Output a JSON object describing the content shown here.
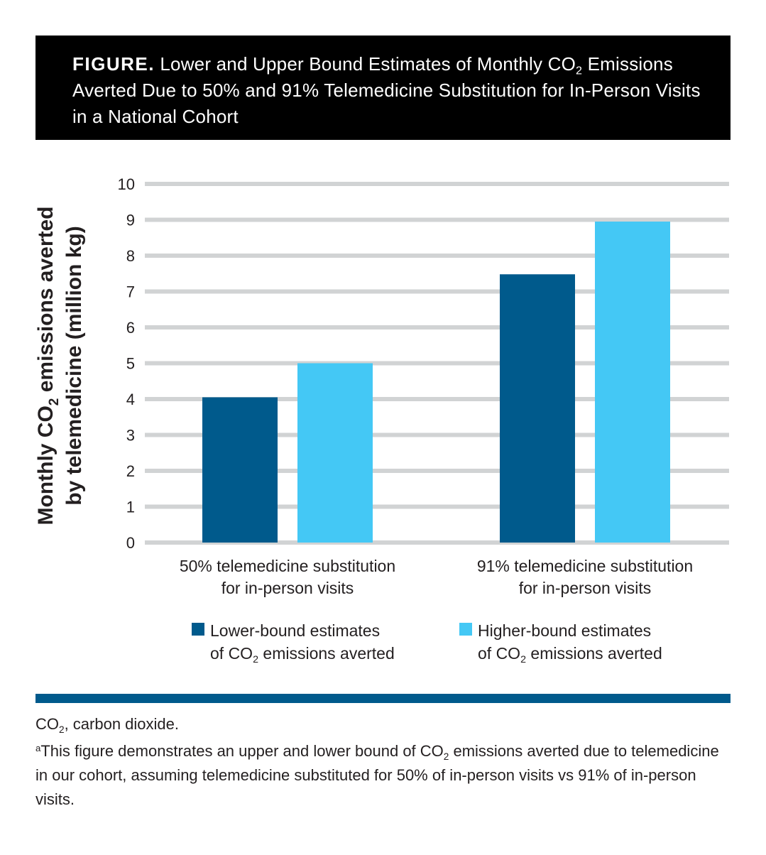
{
  "header": {
    "label": "FIGURE.",
    "title_part1": "Lower and Upper Bound Estimates of Monthly CO",
    "title_sub": "2",
    "title_part2": "Emissions Averted Due to 50% and 91% Telemedicine Substitution for In-Person Visits in a National Cohort"
  },
  "chart_data": {
    "type": "bar",
    "ylabel_line1_pre": "Monthly CO",
    "ylabel_line1_sub": "2",
    "ylabel_line1_post": " emissions averted",
    "ylabel_line2": "by telemedicine (million kg)",
    "categories": [
      [
        "50% telemedicine substitution",
        "for in-person visits"
      ],
      [
        "91% telemedicine substitution",
        "for in-person visits"
      ]
    ],
    "yticks": [
      "0",
      "1",
      "2",
      "3",
      "4",
      "5",
      "6",
      "7",
      "8",
      "9",
      "10"
    ],
    "ylim": [
      0,
      10
    ],
    "grid": true,
    "series": [
      {
        "name_line1": "Lower-bound estimates",
        "name_line2_pre": "of CO",
        "name_line2_sub": "2",
        "name_line2_post": " emissions averted",
        "color": "#005a8c",
        "values": [
          4.05,
          7.48
        ]
      },
      {
        "name_line1": "Higher-bound estimates",
        "name_line2_pre": "of CO",
        "name_line2_sub": "2",
        "name_line2_post": " emissions averted",
        "color": "#44c8f5",
        "values": [
          5.0,
          8.95
        ]
      }
    ],
    "legend_position": "bottom"
  },
  "footnotes": {
    "abbrev_pre": "CO",
    "abbrev_sub": "2",
    "abbrev_post": ", carbon dioxide.",
    "note_marker": "a",
    "note_pre": "This figure demonstrates an upper and lower bound of CO",
    "note_sub": "2",
    "note_post": " emissions averted due to telemedicine in our cohort, assuming telemedicine substituted for 50% of in-person visits vs 91% of in-person visits."
  }
}
